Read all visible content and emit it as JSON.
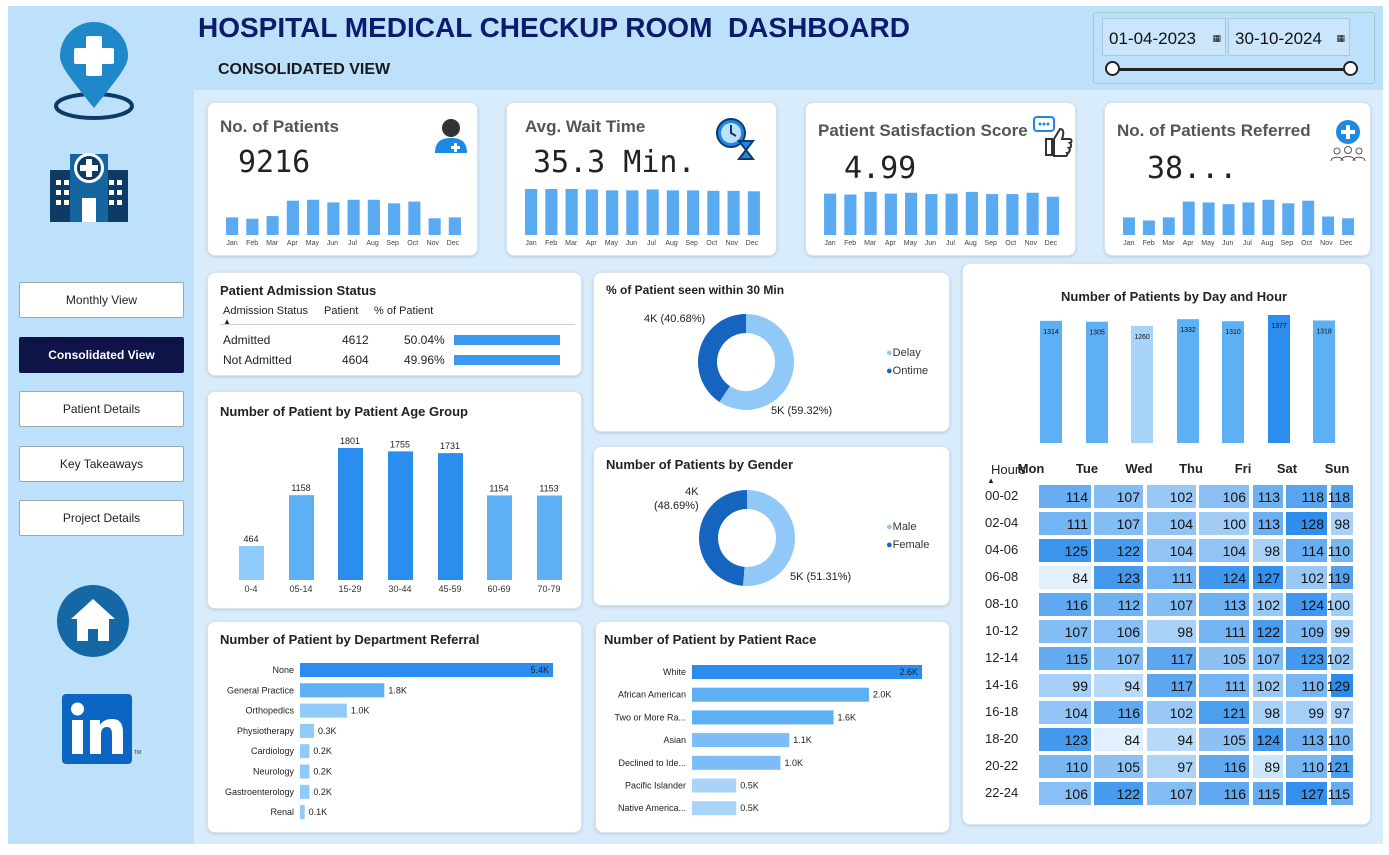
{
  "header": {
    "title": "HOSPITAL MEDICAL CHECKUP ROOM  DASHBOARD",
    "subtitle": "CONSOLIDATED VIEW"
  },
  "date_range": {
    "start": "01-04-2023",
    "end": "30-10-2024"
  },
  "nav": [
    {
      "label": "Monthly View",
      "active": false
    },
    {
      "label": "Consolidated View",
      "active": true
    },
    {
      "label": "Patient Details",
      "active": false
    },
    {
      "label": "Key Takeaways",
      "active": false
    },
    {
      "label": "Project Details",
      "active": false
    }
  ],
  "months": [
    "Jan",
    "Feb",
    "Mar",
    "Apr",
    "May",
    "Jun",
    "Jul",
    "Aug",
    "Sep",
    "Oct",
    "Nov",
    "Dec"
  ],
  "kpis": [
    {
      "title": "No. of Patients",
      "value": "9216",
      "icon": "patient-icon",
      "bars": [
        0.4,
        0.37,
        0.43,
        0.78,
        0.8,
        0.74,
        0.8,
        0.8,
        0.72,
        0.76,
        0.38,
        0.4
      ]
    },
    {
      "title": "Avg. Wait Time",
      "value": "35.3 Min.",
      "icon": "clock-hourglass-icon",
      "bars": [
        1,
        1,
        1,
        0.99,
        0.97,
        0.97,
        0.99,
        0.97,
        0.97,
        0.96,
        0.96,
        0.95
      ]
    },
    {
      "title": "Patient Satisfaction Score",
      "value": "4.99",
      "icon": "feedback-thumbs-up-icon",
      "bars": [
        0.94,
        0.92,
        0.98,
        0.94,
        0.96,
        0.93,
        0.94,
        0.98,
        0.93,
        0.93,
        0.96,
        0.87
      ]
    },
    {
      "title": "No. of Patients Referred",
      "value": "38...",
      "icon": "referral-group-icon",
      "bars": [
        0.4,
        0.33,
        0.4,
        0.76,
        0.74,
        0.7,
        0.74,
        0.8,
        0.72,
        0.78,
        0.42,
        0.38
      ]
    }
  ],
  "admission": {
    "title": "Patient Admission Status",
    "columns": [
      "Admission Status",
      "Patient",
      "% of Patient"
    ],
    "rows": [
      {
        "status": "Admitted",
        "patients": "4612",
        "pct": "50.04%",
        "frac": 0.5004
      },
      {
        "status": "Not Admitted",
        "patients": "4604",
        "pct": "49.96%",
        "frac": 0.4996
      }
    ]
  },
  "charts": {
    "seen30": {
      "title": "% of Patient seen within 30 Min",
      "labels": [
        "4K (40.68%)",
        "5K (59.32%)"
      ],
      "legend": [
        "Delay",
        "Ontime"
      ]
    },
    "gender": {
      "title": "Number of Patients by Gender",
      "labels": [
        "4K\n(48.69%)",
        "5K (51.31%)"
      ],
      "legend": [
        "Male",
        "Female"
      ]
    },
    "age": {
      "title": "Number of Patient by Patient Age Group"
    },
    "dept": {
      "title": "Number of Patient by Department Referral"
    },
    "race": {
      "title": "Number of Patient by Patient Race"
    },
    "dayhour": {
      "title": "Number of Patients by Day and Hour",
      "hours_label": "Hours"
    }
  },
  "chart_data": [
    {
      "type": "pie",
      "title": "% of Patient seen within 30 Min",
      "categories": [
        "Delay",
        "Ontime"
      ],
      "values": [
        59.32,
        40.68
      ],
      "value_labels": [
        "5K (59.32%)",
        "4K (40.68%)"
      ],
      "colors": [
        "#90c8f8",
        "#1565c0"
      ]
    },
    {
      "type": "pie",
      "title": "Number of Patients by Gender",
      "categories": [
        "Male",
        "Female"
      ],
      "values": [
        51.31,
        48.69
      ],
      "value_labels": [
        "5K (51.31%)",
        "4K (48.69%)"
      ],
      "colors": [
        "#90c8f8",
        "#1565c0"
      ]
    },
    {
      "type": "bar",
      "title": "Number of Patient by Patient Age Group",
      "categories": [
        "0-4",
        "05-14",
        "15-29",
        "30-44",
        "45-59",
        "60-69",
        "70-79"
      ],
      "values": [
        464,
        1158,
        1801,
        1755,
        1731,
        1154,
        1153
      ]
    },
    {
      "type": "bar",
      "orientation": "horizontal",
      "title": "Number of Patient by Department Referral",
      "categories": [
        "None",
        "General Practice",
        "Orthopedics",
        "Physiotherapy",
        "Cardiology",
        "Neurology",
        "Gastroenterology",
        "Renal"
      ],
      "values": [
        5.4,
        1.8,
        1.0,
        0.3,
        0.2,
        0.2,
        0.2,
        0.1
      ],
      "value_labels": [
        "5.4K",
        "1.8K",
        "1.0K",
        "0.3K",
        "0.2K",
        "0.2K",
        "0.2K",
        "0.1K"
      ]
    },
    {
      "type": "bar",
      "orientation": "horizontal",
      "title": "Number of Patient by Patient Race",
      "categories": [
        "White",
        "African American",
        "Two or More Ra...",
        "Asian",
        "Declined to Ide...",
        "Pacific Islander",
        "Native America..."
      ],
      "values": [
        2.6,
        2.0,
        1.6,
        1.1,
        1.0,
        0.5,
        0.5
      ],
      "value_labels": [
        "2.6K",
        "2.0K",
        "1.6K",
        "1.1K",
        "1.0K",
        "0.5K",
        "0.5K"
      ]
    },
    {
      "type": "bar",
      "title": "Number of Patients by Day and Hour",
      "categories": [
        "Mon",
        "Tue",
        "Wed",
        "Thu",
        "Fri",
        "Sat",
        "Sun"
      ],
      "values": [
        1314,
        1305,
        1260,
        1332,
        1310,
        1377,
        1318
      ]
    },
    {
      "type": "heatmap",
      "title": "Number of Patients by Day and Hour",
      "x": [
        "Mon",
        "Tue",
        "Wed",
        "Thu",
        "Fri",
        "Sat",
        "Sun"
      ],
      "y": [
        "00-02",
        "02-04",
        "04-06",
        "06-08",
        "08-10",
        "10-12",
        "12-14",
        "14-16",
        "16-18",
        "18-20",
        "20-22",
        "22-24"
      ],
      "values": [
        [
          114,
          107,
          102,
          106,
          113,
          118,
          118
        ],
        [
          111,
          107,
          104,
          100,
          113,
          128,
          98
        ],
        [
          125,
          122,
          104,
          104,
          98,
          114,
          110
        ],
        [
          84,
          123,
          111,
          124,
          127,
          102,
          119
        ],
        [
          116,
          112,
          107,
          113,
          102,
          124,
          100
        ],
        [
          107,
          106,
          98,
          111,
          122,
          109,
          99
        ],
        [
          115,
          107,
          117,
          105,
          107,
          123,
          102
        ],
        [
          99,
          94,
          117,
          111,
          102,
          110,
          129
        ],
        [
          104,
          116,
          102,
          121,
          98,
          99,
          97
        ],
        [
          123,
          84,
          94,
          105,
          124,
          113,
          110
        ],
        [
          110,
          105,
          97,
          116,
          89,
          110,
          121
        ],
        [
          106,
          122,
          107,
          116,
          115,
          127,
          115
        ]
      ]
    }
  ]
}
